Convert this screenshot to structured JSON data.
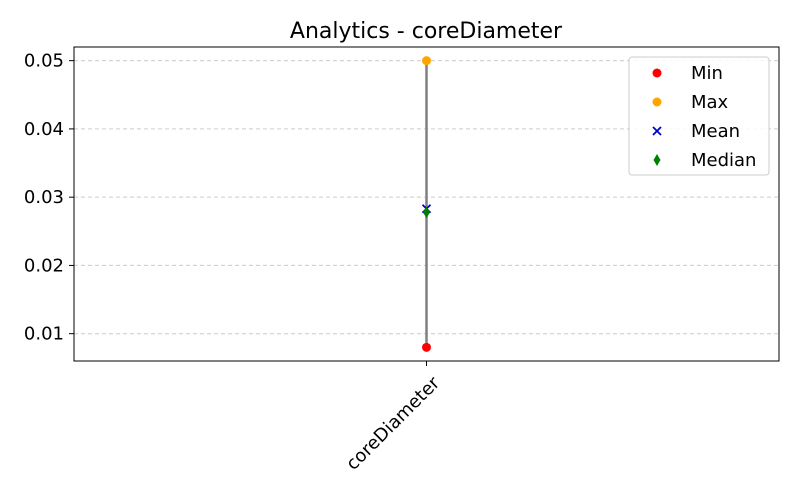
{
  "chart_data": {
    "type": "scatter",
    "title": "Analytics - coreDiameter",
    "xlabel": "",
    "ylabel": "",
    "categories": [
      "coreDiameter"
    ],
    "ylim": [
      0.006,
      0.052
    ],
    "yticks": [
      0.01,
      0.02,
      0.03,
      0.04,
      0.05
    ],
    "ytick_labels": [
      "0.01",
      "0.02",
      "0.03",
      "0.04",
      "0.05"
    ],
    "grid": "horizontal dashed",
    "legend_position": "top-right",
    "range_line_color": "#808080",
    "series": [
      {
        "name": "Min",
        "marker": "circle",
        "color": "#ff0000",
        "values": [
          0.008
        ]
      },
      {
        "name": "Max",
        "marker": "circle",
        "color": "#ffa500",
        "values": [
          0.05
        ]
      },
      {
        "name": "Mean",
        "marker": "x",
        "color": "#0000cc",
        "values": [
          0.0283
        ]
      },
      {
        "name": "Median",
        "marker": "thin-diamond",
        "color": "#008000",
        "values": [
          0.0278
        ]
      }
    ]
  }
}
